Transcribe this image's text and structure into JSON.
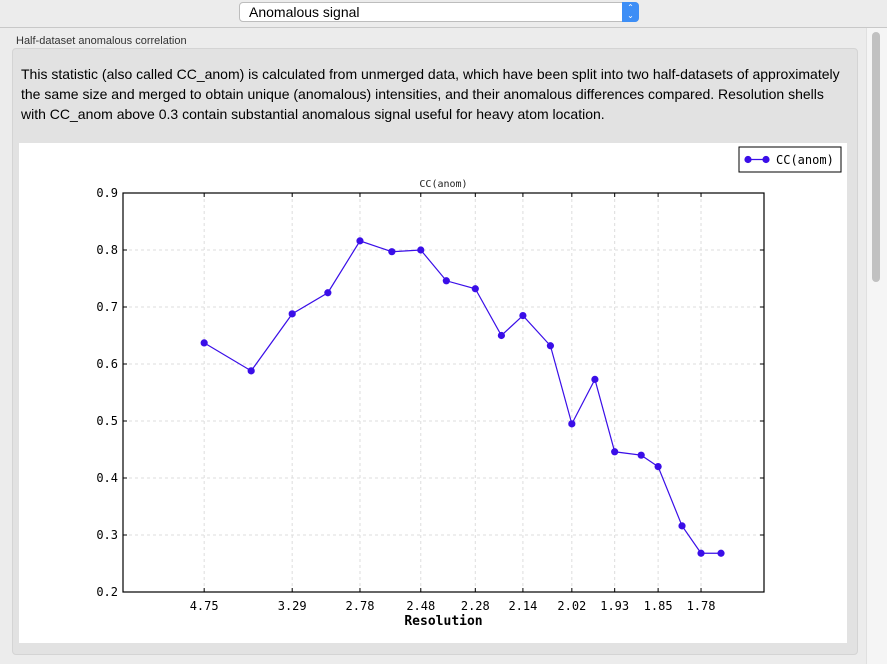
{
  "selector": {
    "value": "Anomalous signal",
    "icon": "updown-chevron-icon"
  },
  "group": {
    "title": "Half-dataset anomalous correlation",
    "description": "This statistic (also called CC_anom) is calculated from unmerged data, which have been split into two half-datasets of approximately the same size and merged to obtain unique (anomalous) intensities, and their anomalous differences compared.  Resolution shells with CC_anom above 0.3 contain substantial anomalous signal useful for heavy atom location."
  },
  "chart_data": {
    "type": "line",
    "title": "CC(anom)",
    "xlabel": "Resolution",
    "ylabel": "",
    "x_scale": "1/d^2 (resolution shown as d)",
    "xticks": [
      "4.75",
      "3.29",
      "2.78",
      "2.48",
      "2.28",
      "2.14",
      "2.02",
      "1.93",
      "1.85",
      "1.78"
    ],
    "yticks": [
      "0.2",
      "0.3",
      "0.4",
      "0.5",
      "0.6",
      "0.7",
      "0.8",
      "0.9"
    ],
    "ylim": [
      0.2,
      0.9
    ],
    "grid": true,
    "legend_position": "top-right",
    "series": [
      {
        "name": "CC(anom)",
        "color": "#3a0ee8",
        "x": [
          4.75,
          3.78,
          3.29,
          2.99,
          2.78,
          2.61,
          2.48,
          2.38,
          2.28,
          2.2,
          2.14,
          2.07,
          2.02,
          1.97,
          1.93,
          1.88,
          1.85,
          1.81,
          1.78,
          1.75
        ],
        "y": [
          0.637,
          0.588,
          0.688,
          0.725,
          0.816,
          0.797,
          0.8,
          0.746,
          0.732,
          0.65,
          0.685,
          0.632,
          0.495,
          0.573,
          0.446,
          0.44,
          0.42,
          0.316,
          0.268,
          0.268
        ]
      }
    ]
  }
}
